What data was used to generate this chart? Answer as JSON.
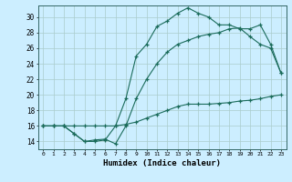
{
  "xlabel": "Humidex (Indice chaleur)",
  "bg_color": "#cceeff",
  "grid_color": "#aacccc",
  "line_color": "#1a6b5a",
  "xlim": [
    -0.5,
    23.5
  ],
  "ylim": [
    13.0,
    31.5
  ],
  "xticks": [
    0,
    1,
    2,
    3,
    4,
    5,
    6,
    7,
    8,
    9,
    10,
    11,
    12,
    13,
    14,
    15,
    16,
    17,
    18,
    19,
    20,
    21,
    22,
    23
  ],
  "yticks": [
    14,
    16,
    18,
    20,
    22,
    24,
    26,
    28,
    30
  ],
  "line1_x": [
    0,
    1,
    2,
    3,
    4,
    5,
    6,
    7,
    8,
    9,
    10,
    11,
    12,
    13,
    14,
    15,
    16,
    17,
    18,
    19,
    20,
    21,
    22,
    23
  ],
  "line1_y": [
    16,
    16,
    16,
    15,
    14,
    14.2,
    14.3,
    13.7,
    16,
    19.5,
    22,
    24,
    25.5,
    26.5,
    27,
    27.5,
    27.8,
    28,
    28.5,
    28.6,
    27.5,
    26.5,
    26,
    22.8
  ],
  "line2_x": [
    0,
    1,
    2,
    3,
    4,
    5,
    6,
    7,
    8,
    9,
    10,
    11,
    12,
    13,
    14,
    15,
    16,
    17,
    18,
    19,
    20,
    21,
    22,
    23
  ],
  "line2_y": [
    16,
    16,
    16,
    15,
    14,
    14,
    14.2,
    16,
    19.5,
    25,
    26.5,
    28.8,
    29.5,
    30.5,
    31.2,
    30.5,
    30,
    29,
    29,
    28.5,
    28.5,
    29,
    26.5,
    22.8
  ],
  "line3_x": [
    0,
    1,
    2,
    3,
    4,
    5,
    6,
    7,
    8,
    9,
    10,
    11,
    12,
    13,
    14,
    15,
    16,
    17,
    18,
    19,
    20,
    21,
    22,
    23
  ],
  "line3_y": [
    16,
    16,
    16,
    16,
    16,
    16,
    16,
    16,
    16.2,
    16.5,
    17,
    17.5,
    18,
    18.5,
    18.8,
    18.8,
    18.8,
    18.9,
    19,
    19.2,
    19.3,
    19.5,
    19.8,
    20
  ]
}
